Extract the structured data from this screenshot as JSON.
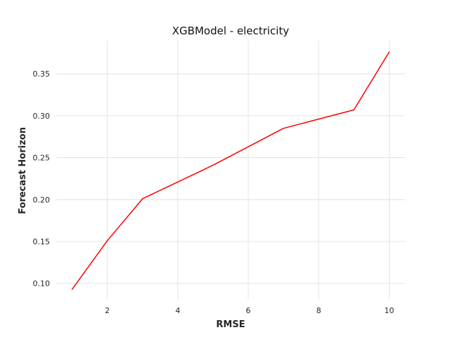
{
  "chart_data": {
    "type": "line",
    "title": "XGBModel - electricity",
    "xlabel": "RMSE",
    "ylabel": "Forecast Horizon",
    "xlim": [
      0.55,
      10.45
    ],
    "ylim": [
      0.0805,
      0.3895
    ],
    "xticks": [
      2,
      4,
      6,
      8,
      10
    ],
    "yticks": [
      0.1,
      0.15,
      0.2,
      0.25,
      0.3,
      0.35
    ],
    "xtick_labels": [
      "2",
      "4",
      "6",
      "8",
      "10"
    ],
    "ytick_labels": [
      "0.10",
      "0.15",
      "0.20",
      "0.25",
      "0.30",
      "0.35"
    ],
    "grid": true,
    "legend": false,
    "series": [
      {
        "color": "#ff0000",
        "x": [
          1,
          2,
          3,
          4,
          5,
          6,
          7,
          8,
          9,
          10
        ],
        "y": [
          0.093,
          0.151,
          0.201,
          0.221,
          0.241,
          0.263,
          0.285,
          0.296,
          0.307,
          0.376
        ]
      }
    ]
  }
}
